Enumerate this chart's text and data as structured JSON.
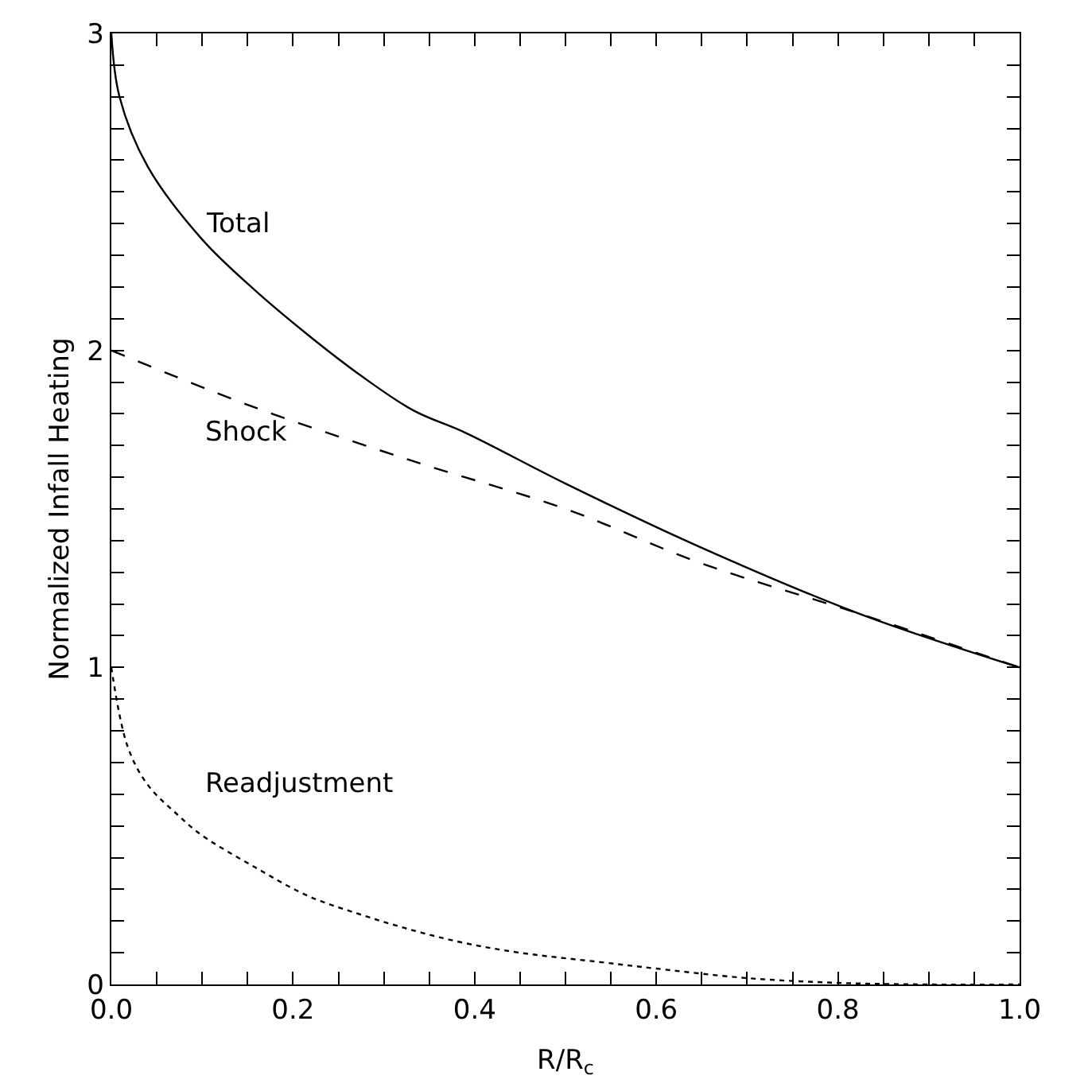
{
  "chart_data": {
    "type": "line",
    "xlabel": "R/R$_{c}$",
    "ylabel": "Normalized Infall Heating",
    "xlim": [
      0,
      1
    ],
    "ylim": [
      0,
      3
    ],
    "xticks": [
      {
        "value": 0,
        "label": "0.0"
      },
      {
        "value": 0.05,
        "label": null
      },
      {
        "value": 0.1,
        "label": null
      },
      {
        "value": 0.15,
        "label": null
      },
      {
        "value": 0.2,
        "label": "0.2"
      },
      {
        "value": 0.25,
        "label": null
      },
      {
        "value": 0.3,
        "label": null
      },
      {
        "value": 0.35,
        "label": null
      },
      {
        "value": 0.4,
        "label": "0.4"
      },
      {
        "value": 0.45,
        "label": null
      },
      {
        "value": 0.5,
        "label": null
      },
      {
        "value": 0.55,
        "label": null
      },
      {
        "value": 0.6,
        "label": "0.6"
      },
      {
        "value": 0.65,
        "label": null
      },
      {
        "value": 0.7,
        "label": null
      },
      {
        "value": 0.75,
        "label": null
      },
      {
        "value": 0.8,
        "label": "0.8"
      },
      {
        "value": 0.85,
        "label": null
      },
      {
        "value": 0.9,
        "label": null
      },
      {
        "value": 0.95,
        "label": null
      },
      {
        "value": 1,
        "label": "1.0"
      }
    ],
    "yticks": [
      0,
      {
        "value": 0.1,
        "label": null
      },
      {
        "value": 0.2,
        "label": null
      },
      {
        "value": 0.3,
        "label": null
      },
      {
        "value": 0.4,
        "label": null
      },
      {
        "value": 0.5,
        "label": null
      },
      {
        "value": 0.6,
        "label": null
      },
      {
        "value": 0.7,
        "label": null
      },
      {
        "value": 0.8,
        "label": null
      },
      {
        "value": 0.9,
        "label": null
      },
      1,
      {
        "value": 1.1,
        "label": null
      },
      {
        "value": 1.2,
        "label": null
      },
      {
        "value": 1.3,
        "label": null
      },
      {
        "value": 1.4,
        "label": null
      },
      {
        "value": 1.5,
        "label": null
      },
      {
        "value": 1.6,
        "label": null
      },
      {
        "value": 1.7,
        "label": null
      },
      {
        "value": 1.8,
        "label": null
      },
      {
        "value": 1.9,
        "label": null
      },
      2,
      {
        "value": 2.1,
        "label": null
      },
      {
        "value": 2.2,
        "label": null
      },
      {
        "value": 2.3,
        "label": null
      },
      {
        "value": 2.4,
        "label": null
      },
      {
        "value": 2.5,
        "label": null
      },
      {
        "value": 2.6,
        "label": null
      },
      {
        "value": 2.7,
        "label": null
      },
      {
        "value": 2.8,
        "label": null
      },
      {
        "value": 2.9,
        "label": null
      },
      3
    ],
    "marker": "none",
    "series": [
      {
        "color": "#000000",
        "line_style": "solid",
        "x": [
          0,
          0.009,
          0.04,
          0.1,
          0.158,
          0.216,
          0.275,
          0.333,
          0.39,
          0.5,
          0.648,
          0.823,
          1.0
        ],
        "values": [
          3.0,
          2.8,
          2.58,
          2.35,
          2.19,
          2.05,
          1.92,
          1.81,
          1.74,
          1.58,
          1.38,
          1.17,
          1.0
        ]
      },
      {
        "color": "#000000",
        "line_style": "dashed",
        "x": [
          0,
          0.158,
          0.333,
          0.5,
          0.648,
          0.823,
          1.0
        ],
        "values": [
          2.0,
          1.82,
          1.65,
          1.5,
          1.33,
          1.17,
          1.0
        ]
      },
      {
        "color": "#000000",
        "line_style": "dotted",
        "x": [
          0,
          0.018,
          0.04,
          0.075,
          0.1,
          0.158,
          0.216,
          0.275,
          0.333,
          0.39,
          0.45,
          0.54,
          0.6,
          0.7,
          0.8,
          0.9,
          1.0
        ],
        "values": [
          1.0,
          0.75,
          0.63,
          0.53,
          0.47,
          0.37,
          0.28,
          0.22,
          0.17,
          0.13,
          0.1,
          0.07,
          0.05,
          0.02,
          0.005,
          0,
          0
        ]
      }
    ],
    "annotations": [
      "Total",
      "Shock",
      "Readjustment"
    ]
  }
}
